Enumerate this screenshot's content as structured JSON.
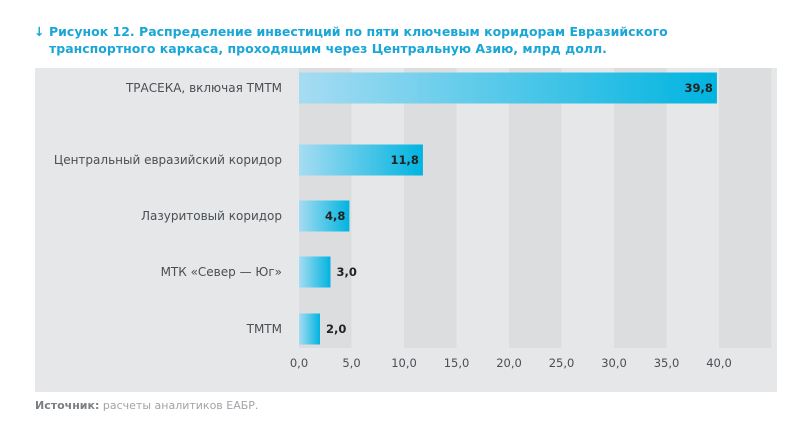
{
  "title": {
    "arrow": "↓",
    "text": "Рисунок 12. Распределение инвестиций по пяти ключевым коридорам Евразийского транспортного каркаса, проходящим через Центральную Азию, млрд долл."
  },
  "source": {
    "label": "Источник:",
    "text": " расчеты аналитиков ЕАБР."
  },
  "colors": {
    "accent": "#00b4e0",
    "bar_light": "#a6dcf2",
    "bg": "#e6e7e8",
    "stripe": "#dcdddf",
    "title": "#1aa6d6"
  },
  "chart_data": {
    "type": "bar",
    "orientation": "horizontal",
    "categories": [
      "ТРАСЕКА, включая ТМТМ",
      "Центральный евразийский коридор",
      "Лазуритовый коридор",
      "МТК «Север — Юг»",
      "ТМТМ"
    ],
    "values": [
      39.8,
      11.8,
      4.8,
      3.0,
      2.0
    ],
    "data_labels": [
      "39,8",
      "11,8",
      "4,8",
      "3,0",
      "2,0"
    ],
    "xticks": [
      "0,0",
      "5,0",
      "10,0",
      "15,0",
      "20,0",
      "25,0",
      "30,0",
      "35,0",
      "40,0"
    ],
    "xlim": [
      0,
      45
    ],
    "grid": "alternating column bands"
  }
}
